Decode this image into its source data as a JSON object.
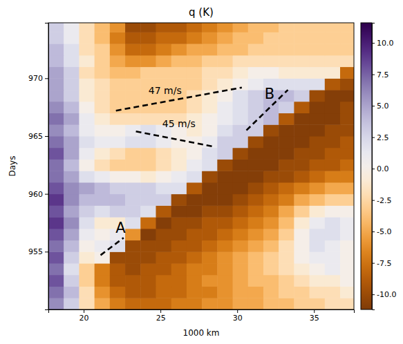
{
  "chart_data": {
    "type": "heatmap",
    "title": "q (K)",
    "x_label": "1000 km",
    "y_label": "Days",
    "xlim": [
      17.7,
      37.6
    ],
    "ylim": [
      950,
      974.8
    ],
    "xticks": [
      20,
      25,
      30,
      35
    ],
    "yticks": [
      955,
      960,
      965,
      970
    ],
    "color": "PuOr_r",
    "x": [
      18.2,
      19.2,
      20.2,
      21.2,
      22.2,
      23.2,
      24.2,
      25.2,
      26.2,
      27.2,
      28.2,
      29.2,
      30.2,
      31.2,
      32.2,
      33.2,
      34.2,
      35.2,
      36.2,
      37.2
    ],
    "y": [
      950.5,
      951.5,
      952.5,
      953.5,
      954.5,
      955.5,
      956.5,
      957.5,
      958.5,
      959.5,
      960.5,
      961.5,
      962.5,
      963.5,
      964.5,
      965.5,
      966.5,
      967.5,
      968.5,
      969.5,
      970.5,
      971.5,
      972.5,
      973.5,
      974.5
    ],
    "z": [
      [
        6,
        3,
        -2,
        -5,
        -7,
        -8,
        -8,
        -8,
        -7,
        -7,
        -6,
        -6,
        -5,
        -5,
        -4,
        -4,
        -3,
        -3,
        -2,
        -2
      ],
      [
        7,
        4,
        -2,
        -6,
        -8,
        -9,
        -9,
        -8,
        -8,
        -7,
        -7,
        -6,
        -5,
        -5,
        -4,
        -3,
        -3,
        -2,
        -2,
        -1
      ],
      [
        8,
        3,
        -3,
        -7,
        -9,
        -9,
        -9,
        -8,
        -8,
        -7,
        -6,
        -6,
        -5,
        -4,
        -4,
        -3,
        -2,
        -1,
        -1,
        0
      ],
      [
        7,
        2,
        -3,
        -7,
        -9,
        -10,
        -9,
        -9,
        -8,
        -7,
        -7,
        -6,
        -5,
        -4,
        -3,
        -2,
        -1,
        0,
        1,
        0
      ],
      [
        8,
        3,
        -1,
        0,
        -10,
        -10,
        -10,
        -9,
        -9,
        -8,
        -7,
        -6,
        -5,
        -4,
        -3,
        -2,
        0,
        1,
        1,
        0
      ],
      [
        7,
        4,
        0,
        1,
        2,
        -10,
        -10,
        -10,
        -9,
        -9,
        -8,
        -7,
        -6,
        -5,
        -4,
        -2,
        0,
        2,
        1,
        0
      ],
      [
        8,
        5,
        1,
        0,
        1,
        -6,
        -11,
        -10,
        -10,
        -9,
        -9,
        -8,
        -7,
        -6,
        -5,
        -3,
        0,
        2,
        2,
        1
      ],
      [
        9,
        6,
        2,
        -1,
        -1,
        2,
        -8,
        -11,
        -10,
        -10,
        -9,
        -9,
        -8,
        -7,
        -6,
        -4,
        -1,
        1,
        2,
        1
      ],
      [
        8,
        5,
        3,
        2,
        3,
        3,
        2,
        -9,
        -11,
        -11,
        -10,
        -10,
        -9,
        -8,
        -7,
        -5,
        -3,
        -1,
        0,
        0
      ],
      [
        9,
        6,
        4,
        4,
        4,
        3,
        3,
        3,
        -10,
        -11,
        -11,
        -11,
        -10,
        -9,
        -8,
        -7,
        -5,
        -4,
        -3,
        -3
      ],
      [
        8,
        6,
        5,
        4,
        3,
        3,
        3,
        2,
        2,
        -9,
        -11,
        -11,
        -11,
        -10,
        -9,
        -8,
        -7,
        -6,
        -5,
        -5
      ],
      [
        7,
        5,
        2,
        1,
        0,
        0,
        -1,
        0,
        1,
        2,
        -10,
        -11,
        -11,
        -11,
        -10,
        -10,
        -9,
        -8,
        -7,
        -7
      ],
      [
        7,
        4,
        0,
        -2,
        -3,
        -3,
        -3,
        -2,
        -1,
        1,
        2,
        -10,
        -11,
        -11,
        -11,
        -10,
        -10,
        -9,
        -9,
        -8
      ],
      [
        8,
        5,
        1,
        -1,
        -2,
        -3,
        -3,
        -2,
        -1,
        0,
        2,
        3,
        -10,
        -11,
        -11,
        -11,
        -10,
        -10,
        -9,
        -9
      ],
      [
        7,
        5,
        2,
        1,
        1,
        2,
        2,
        1,
        0,
        0,
        1,
        3,
        3,
        -10,
        -11,
        -11,
        -11,
        -10,
        -10,
        -9
      ],
      [
        6,
        4,
        1,
        0,
        0,
        1,
        2,
        1,
        0,
        -1,
        0,
        2,
        3,
        3,
        -10,
        -11,
        -11,
        -11,
        -10,
        -10
      ],
      [
        7,
        5,
        1,
        -1,
        -2,
        -2,
        -2,
        -2,
        -2,
        -1,
        0,
        1,
        2,
        3,
        4,
        -9,
        -11,
        -11,
        -11,
        -10
      ],
      [
        6,
        4,
        0,
        -2,
        -3,
        -3,
        -3,
        -3,
        -3,
        -2,
        -1,
        1,
        2,
        3,
        4,
        3,
        -9,
        -11,
        -11,
        -10
      ],
      [
        5,
        3,
        -1,
        -2,
        -3,
        -3,
        -3,
        -3,
        -3,
        -2,
        -1,
        0,
        2,
        3,
        4,
        4,
        3,
        -10,
        -11,
        -11
      ],
      [
        5,
        3,
        -1,
        -2,
        -3,
        -3,
        -3,
        -3,
        -3,
        -3,
        -2,
        -1,
        0,
        1,
        2,
        2,
        2,
        2,
        -9,
        -10
      ],
      [
        5,
        3,
        -2,
        -3,
        -4,
        -4,
        -3,
        -3,
        -3,
        -3,
        -2,
        -2,
        -1,
        0,
        0,
        -1,
        -1,
        -1,
        -1,
        -8
      ],
      [
        4,
        2,
        -1,
        -3,
        -5,
        -6,
        -6,
        -5,
        -4,
        -4,
        -3,
        -3,
        -2,
        -2,
        -2,
        -2,
        -2,
        -2,
        -2,
        -2
      ],
      [
        4,
        2,
        -2,
        -3,
        -6,
        -8,
        -8,
        -7,
        -6,
        -5,
        -5,
        -4,
        -4,
        -3,
        -3,
        -3,
        -3,
        -3,
        -3,
        -3
      ],
      [
        3,
        1,
        -2,
        -4,
        -7,
        -9,
        -9,
        -8,
        -8,
        -7,
        -6,
        -5,
        -4,
        -4,
        -3,
        -3,
        -3,
        -3,
        -3,
        -3
      ],
      [
        3,
        1,
        -2,
        -4,
        -6,
        -10,
        -10,
        -9,
        -9,
        -8,
        -7,
        -6,
        -5,
        -4,
        -4,
        -3,
        -3,
        -3,
        -3,
        -3
      ]
    ],
    "colorbar": {
      "range": [
        -11.2,
        11.6
      ],
      "ticks": [
        {
          "value": -10,
          "label": "-10.0"
        },
        -7.5,
        {
          "value": -5,
          "label": "-5.0"
        },
        -2.5,
        {
          "value": 0,
          "label": "0.0"
        },
        2.5,
        {
          "value": 5,
          "label": "5.0"
        },
        7.5,
        {
          "value": 10,
          "label": "10.0"
        }
      ]
    },
    "annotations": [
      {
        "text": "47 m/s",
        "x": 25.3,
        "y": 968.9,
        "line": {
          "x": [
            22.1,
            30.3
          ],
          "y": [
            967.2,
            969.2
          ]
        }
      },
      {
        "text": "45 m/s",
        "x": 26.2,
        "y": 966.0,
        "line": {
          "x": [
            23.4,
            28.4
          ],
          "y": [
            965.4,
            964.1
          ]
        }
      },
      {
        "text": "A",
        "x": 22.4,
        "y": 957.0,
        "line": {
          "x": [
            21.1,
            22.6
          ],
          "y": [
            954.7,
            956.2
          ]
        }
      },
      {
        "text": "B",
        "x": 32.1,
        "y": 968.6,
        "line": {
          "x": [
            30.6,
            33.3
          ],
          "y": [
            965.5,
            969.0
          ]
        }
      }
    ]
  }
}
